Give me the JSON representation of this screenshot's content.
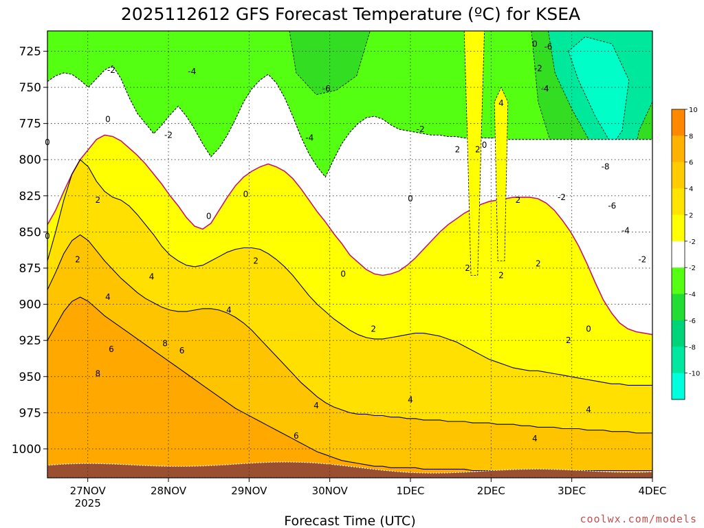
{
  "chart_data": {
    "type": "heatmap",
    "title": "2025112612 GFS Forecast Temperature (ºC) for KSEA",
    "xlabel": "Forecast Time (UTC)",
    "ylabel": "",
    "credit": "coolwx.com/models",
    "x_ticks": [
      {
        "hour": 12,
        "label": "27NOV",
        "sublabel": "2025"
      },
      {
        "hour": 36,
        "label": "28NOV"
      },
      {
        "hour": 60,
        "label": "29NOV"
      },
      {
        "hour": 84,
        "label": "30NOV"
      },
      {
        "hour": 108,
        "label": "1DEC"
      },
      {
        "hour": 132,
        "label": "2DEC"
      },
      {
        "hour": 156,
        "label": "3DEC"
      },
      {
        "hour": 180,
        "label": "4DEC"
      }
    ],
    "xlim_hours": [
      0,
      180
    ],
    "y_ticks": [
      725,
      750,
      775,
      800,
      825,
      850,
      875,
      900,
      925,
      950,
      975,
      1000
    ],
    "ylim_hPa": [
      711,
      1020
    ],
    "colorbar": {
      "levels": [
        -12,
        -10,
        -8,
        -6,
        -4,
        -2,
        2,
        4,
        6,
        8,
        10,
        12
      ],
      "labels": [
        "-10",
        "-8",
        "-6",
        "-4",
        "-2",
        "-2",
        "2",
        "4",
        "6",
        "8",
        "10"
      ],
      "colors": [
        "#00ffdd",
        "#00e8a0",
        "#00d478",
        "#22dd33",
        "#55ff11",
        "#ffffff",
        "#ffff00",
        "#ffe400",
        "#ffcc00",
        "#ffb200",
        "#ff8800"
      ]
    },
    "band_colors": {
      "m8": "#00ffc8",
      "m6": "#00e89c",
      "m4": "#33dd22",
      "m2": "#55ff11",
      "zero": "#ffffff",
      "p2": "#ffff00",
      "p4": "#ffe000",
      "p6": "#ffc400",
      "p8": "#ffa800",
      "ground": "#9a5030"
    },
    "isotherms": [
      {
        "value": "-2",
        "hPa": [
          746,
          742,
          740,
          741,
          745,
          750,
          744,
          738,
          735,
          744,
          757,
          768,
          775,
          782,
          776,
          769,
          763,
          770,
          779,
          789,
          798,
          792,
          783,
          772,
          760,
          751,
          745,
          741,
          747,
          757,
          770,
          784,
          796,
          805,
          812,
          800,
          789,
          781,
          775,
          771,
          770,
          772,
          776,
          779,
          780,
          781,
          782,
          783,
          783,
          784,
          784,
          785,
          785,
          785,
          785,
          785,
          786,
          786,
          786,
          786,
          786,
          786,
          786,
          786,
          786,
          786,
          786,
          786,
          786,
          786,
          786,
          786,
          786,
          786,
          786
        ]
      },
      {
        "value": "0",
        "hPa": [
          845,
          835,
          822,
          810,
          800,
          793,
          786,
          783,
          784,
          787,
          792,
          797,
          803,
          810,
          817,
          825,
          832,
          840,
          846,
          848,
          844,
          835,
          826,
          818,
          812,
          808,
          805,
          803,
          805,
          808,
          813,
          820,
          828,
          836,
          843,
          851,
          858,
          866,
          871,
          876,
          879,
          880,
          879,
          877,
          873,
          868,
          862,
          856,
          850,
          845,
          841,
          837,
          834,
          831,
          829,
          828,
          827,
          826,
          826,
          826,
          827,
          830,
          835,
          842,
          850,
          860,
          872,
          885,
          897,
          906,
          913,
          917,
          919,
          920,
          921
        ]
      },
      {
        "value": "2",
        "hPa": [
          870,
          850,
          828,
          810,
          800,
          805,
          815,
          822,
          826,
          828,
          832,
          838,
          845,
          852,
          860,
          866,
          870,
          873,
          874,
          873,
          870,
          867,
          864,
          862,
          861,
          861,
          862,
          865,
          869,
          874,
          880,
          887,
          894,
          900,
          905,
          910,
          914,
          918,
          921,
          923,
          924,
          924,
          923,
          922,
          921,
          920,
          920,
          921,
          922,
          924,
          926,
          929,
          932,
          935,
          938,
          940,
          942,
          944,
          945,
          946,
          946,
          947,
          948,
          949,
          950,
          951,
          952,
          953,
          954,
          955,
          955,
          956,
          956,
          956,
          956
        ]
      },
      {
        "value": "4",
        "hPa": [
          890,
          878,
          865,
          856,
          852,
          856,
          863,
          870,
          876,
          882,
          887,
          892,
          896,
          899,
          902,
          904,
          905,
          905,
          904,
          903,
          903,
          904,
          906,
          909,
          913,
          918,
          924,
          930,
          936,
          942,
          948,
          954,
          959,
          964,
          968,
          971,
          973,
          975,
          976,
          976,
          977,
          977,
          978,
          978,
          979,
          979,
          980,
          980,
          980,
          981,
          981,
          981,
          982,
          982,
          982,
          983,
          983,
          983,
          984,
          984,
          985,
          985,
          985,
          986,
          986,
          986,
          987,
          987,
          987,
          988,
          988,
          988,
          989,
          989,
          989
        ]
      },
      {
        "value": "6",
        "hPa": [
          925,
          915,
          905,
          898,
          895,
          898,
          903,
          908,
          912,
          916,
          920,
          924,
          928,
          932,
          936,
          940,
          944,
          948,
          952,
          956,
          960,
          964,
          968,
          972,
          975,
          978,
          981,
          984,
          987,
          990,
          993,
          996,
          999,
          1002,
          1004,
          1006,
          1008,
          1009,
          1010,
          1011,
          1012,
          1012,
          1013,
          1013,
          1013,
          1013,
          1014,
          1014,
          1014,
          1014,
          1014,
          1014,
          1015,
          1015,
          1015,
          1015,
          1015,
          1015,
          1015,
          1015,
          1015,
          1015,
          1015,
          1015,
          1015,
          1015,
          1015,
          1015,
          1015,
          1015,
          1015,
          1015,
          1015,
          1015,
          1015
        ]
      }
    ],
    "contour_labels": [
      {
        "text": "-2",
        "hour": 19,
        "hPa": 738
      },
      {
        "text": "-4",
        "hour": 43,
        "hPa": 739
      },
      {
        "text": "-6",
        "hour": 83,
        "hPa": 751
      },
      {
        "text": "-4",
        "hour": 78,
        "hPa": 785
      },
      {
        "text": "-2",
        "hour": 36,
        "hPa": 783
      },
      {
        "text": "-2",
        "hour": 111,
        "hPa": 779
      },
      {
        "text": "0",
        "hour": 0,
        "hPa": 788
      },
      {
        "text": "0",
        "hour": 18,
        "hPa": 772
      },
      {
        "text": "0",
        "hour": 59,
        "hPa": 824
      },
      {
        "text": "0",
        "hour": 48,
        "hPa": 839
      },
      {
        "text": "0",
        "hour": 108,
        "hPa": 827
      },
      {
        "text": "0",
        "hour": 88,
        "hPa": 879
      },
      {
        "text": "0",
        "hour": 0,
        "hPa": 853
      },
      {
        "text": "0",
        "hour": 161,
        "hPa": 917
      },
      {
        "text": "0",
        "hour": 145,
        "hPa": 720
      },
      {
        "text": "0",
        "hour": 130,
        "hPa": 790
      },
      {
        "text": "2",
        "hour": 15,
        "hPa": 828
      },
      {
        "text": "2",
        "hour": 9,
        "hPa": 869
      },
      {
        "text": "2",
        "hour": 62,
        "hPa": 870
      },
      {
        "text": "2",
        "hour": 97,
        "hPa": 917
      },
      {
        "text": "2",
        "hour": 125,
        "hPa": 875
      },
      {
        "text": "2",
        "hour": 135,
        "hPa": 880
      },
      {
        "text": "2",
        "hour": 140,
        "hPa": 828
      },
      {
        "text": "2",
        "hour": 146,
        "hPa": 872
      },
      {
        "text": "2",
        "hour": 155,
        "hPa": 925
      },
      {
        "text": "-2",
        "hour": 146,
        "hPa": 737
      },
      {
        "text": "-2",
        "hour": 153,
        "hPa": 826
      },
      {
        "text": "-2",
        "hour": 177,
        "hPa": 869
      },
      {
        "text": "-4",
        "hour": 148,
        "hPa": 751
      },
      {
        "text": "-6",
        "hour": 149,
        "hPa": 722
      },
      {
        "text": "-8",
        "hour": 166,
        "hPa": 805
      },
      {
        "text": "-6",
        "hour": 168,
        "hPa": 832
      },
      {
        "text": "-4",
        "hour": 172,
        "hPa": 849
      },
      {
        "text": "4",
        "hour": 18,
        "hPa": 895
      },
      {
        "text": "4",
        "hour": 31,
        "hPa": 881
      },
      {
        "text": "4",
        "hour": 54,
        "hPa": 904
      },
      {
        "text": "4",
        "hour": 80,
        "hPa": 970
      },
      {
        "text": "4",
        "hour": 108,
        "hPa": 966
      },
      {
        "text": "4",
        "hour": 135,
        "hPa": 761
      },
      {
        "text": "4",
        "hour": 145,
        "hPa": 993
      },
      {
        "text": "4",
        "hour": 161,
        "hPa": 973
      },
      {
        "text": "6",
        "hour": 19,
        "hPa": 931
      },
      {
        "text": "6",
        "hour": 40,
        "hPa": 932
      },
      {
        "text": "6",
        "hour": 74,
        "hPa": 991
      },
      {
        "text": "8",
        "hour": 15,
        "hPa": 948
      },
      {
        "text": "8",
        "hour": 35,
        "hPa": 927
      },
      {
        "text": "2",
        "hour": 122,
        "hPa": 793
      },
      {
        "text": "2",
        "hour": 128,
        "hPa": 793
      }
    ]
  }
}
